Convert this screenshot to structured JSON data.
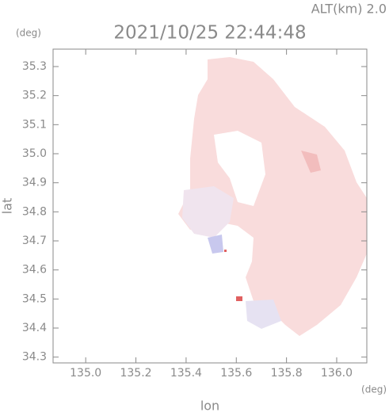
{
  "chart_data": {
    "type": "radar-map",
    "title": "2021/10/25 22:44:48",
    "altitude_label": "ALT(km) 2.0",
    "y_unit": "(deg)",
    "x_unit": "(deg)",
    "xlabel": "lon",
    "ylabel": "lat",
    "xlim": [
      134.87,
      136.12
    ],
    "ylim": [
      34.28,
      35.36
    ],
    "xticks": [
      {
        "value": 135,
        "label": "135.0"
      },
      135.2,
      135.4,
      135.6,
      135.8,
      {
        "value": 136,
        "label": "136.0"
      }
    ],
    "yticks": [
      34.3,
      34.4,
      34.5,
      34.6,
      34.7,
      34.8,
      34.9,
      {
        "value": 35,
        "label": "35.0"
      },
      35.1,
      35.2,
      35.3
    ],
    "grid": false
  }
}
